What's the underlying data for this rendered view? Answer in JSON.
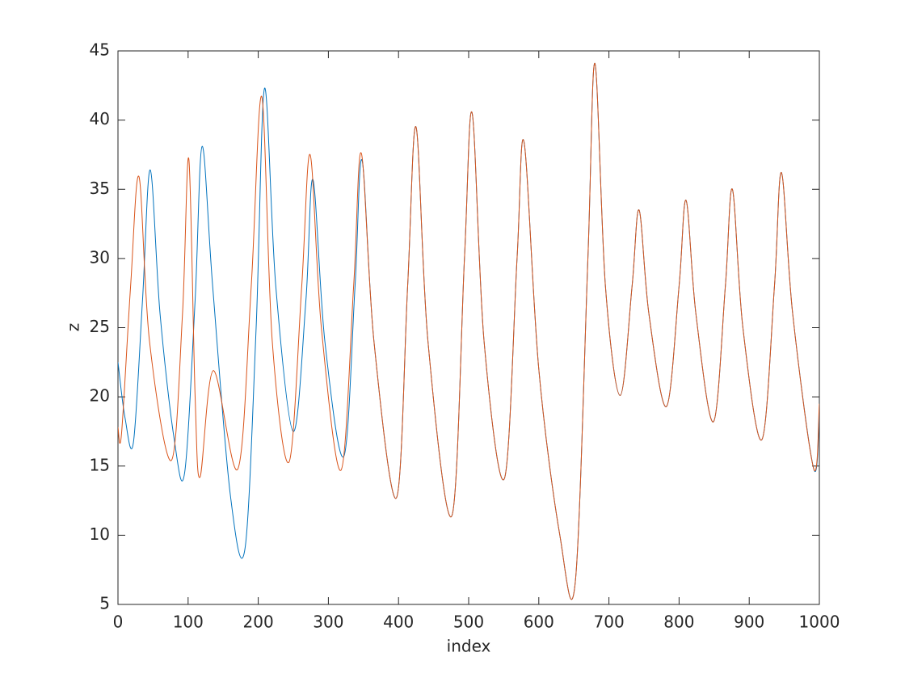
{
  "chart_data": {
    "type": "line",
    "xlabel": "index",
    "ylabel": "z",
    "xlim": [
      0,
      1000
    ],
    "ylim": [
      5,
      45
    ],
    "xticks": [
      0,
      100,
      200,
      300,
      400,
      500,
      600,
      700,
      800,
      900,
      1000
    ],
    "yticks": [
      5,
      10,
      15,
      20,
      25,
      30,
      35,
      40,
      45
    ],
    "grid": false,
    "series": [
      {
        "color": "#0072BD",
        "x": [
          0,
          10,
          22,
          35,
          46,
          60,
          80,
          95,
          110,
          120,
          135,
          160,
          181,
          197,
          209,
          225,
          250,
          268,
          278,
          295,
          322,
          338,
          348,
          365,
          397,
          413,
          425,
          442,
          476,
          494,
          505,
          522,
          551,
          569,
          579,
          600,
          630,
          652,
          670,
          680,
          695,
          716,
          733,
          743,
          757,
          782,
          800,
          810,
          824,
          849,
          866,
          876,
          891,
          918,
          936,
          946,
          962,
          992,
          1000
        ],
        "values": [
          22.5,
          18.5,
          16.7,
          27,
          36.4,
          26,
          17,
          14.5,
          27,
          38.1,
          28,
          13,
          9.0,
          25,
          42.3,
          28,
          17.5,
          27,
          35.7,
          24,
          15.7,
          28,
          37.1,
          24,
          12.7,
          28,
          39.5,
          24,
          11.4,
          30,
          40.5,
          24,
          14.1,
          30,
          38.4,
          22,
          10,
          6.6,
          30,
          44.1,
          28,
          20.1,
          28,
          33.5,
          26,
          19.3,
          28,
          34.2,
          26,
          18.2,
          28,
          35.0,
          25,
          16.9,
          28,
          36.2,
          26,
          14.8,
          18.8
        ]
      },
      {
        "color": "#D95319",
        "x": [
          0,
          5,
          18,
          30,
          45,
          76,
          92,
          101,
          110,
          117,
          136,
          171,
          190,
          205,
          220,
          244,
          262,
          274,
          290,
          318,
          336,
          347,
          365,
          397,
          413,
          425,
          442,
          476,
          494,
          505,
          522,
          551,
          569,
          579,
          600,
          630,
          652,
          670,
          680,
          695,
          716,
          733,
          743,
          757,
          782,
          800,
          810,
          824,
          849,
          866,
          876,
          891,
          918,
          936,
          946,
          962,
          992,
          1000
        ],
        "values": [
          17.8,
          17.3,
          28,
          35.9,
          24,
          15.4,
          26,
          37.2,
          20,
          14.2,
          21.9,
          14.8,
          28,
          41.7,
          24,
          15.3,
          28,
          37.5,
          25,
          14.7,
          28,
          37.6,
          24,
          12.7,
          28,
          39.5,
          24,
          11.4,
          30,
          40.5,
          24,
          14.1,
          30,
          38.4,
          22,
          10,
          6.6,
          30,
          44.1,
          28,
          20.1,
          28,
          33.5,
          26,
          19.3,
          28,
          34.2,
          26,
          18.2,
          28,
          35.0,
          25,
          16.9,
          28,
          36.2,
          26,
          14.8,
          19.5
        ]
      }
    ]
  }
}
